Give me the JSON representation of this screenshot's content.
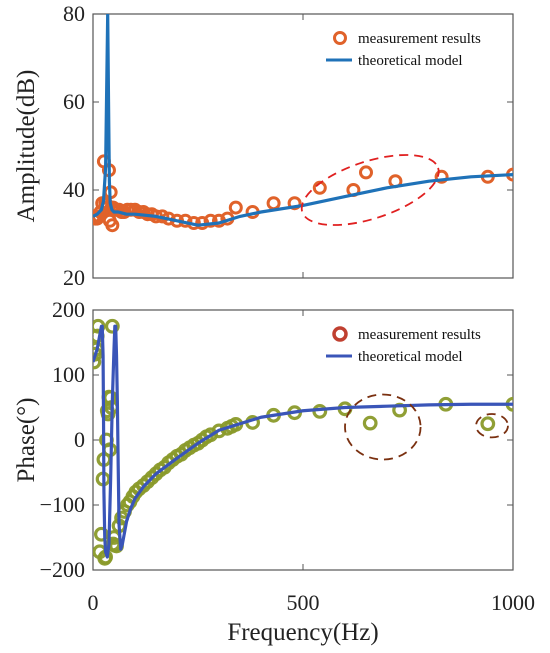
{
  "chart_data": [
    {
      "type": "scatter",
      "ylabel": "Amplitude(dB)",
      "xlim": [
        0,
        1000
      ],
      "ylim": [
        20,
        80
      ],
      "yticks": [
        20,
        40,
        60,
        80
      ],
      "ytick_labels": [
        "20",
        "40",
        "60",
        "80"
      ],
      "legend": {
        "placement": "top-right",
        "entries": [
          "measurement results",
          "theoretical model"
        ]
      },
      "colors": {
        "marker": "#e0622a",
        "line": "#1f72b8",
        "ellipse": "#e02020"
      },
      "series": [
        {
          "name": "measurement results",
          "x": [
            2,
            6,
            10,
            14,
            18,
            22,
            26,
            30,
            34,
            38,
            40,
            42,
            44,
            46,
            48,
            52,
            56,
            62,
            68,
            74,
            82,
            90,
            100,
            110,
            120,
            130,
            140,
            150,
            165,
            180,
            200,
            220,
            240,
            260,
            280,
            300,
            320,
            340,
            380,
            430,
            480,
            540,
            620,
            650,
            720,
            830,
            940,
            1000
          ],
          "y": [
            34,
            33.5,
            33.5,
            34,
            35,
            37,
            46.5,
            37,
            36,
            44.5,
            33,
            39.5,
            36,
            32,
            36,
            35.5,
            35.5,
            35.5,
            35,
            35,
            35.5,
            35.5,
            35.5,
            35,
            35,
            34.5,
            34.5,
            34,
            34,
            33.5,
            33,
            33,
            32.5,
            32.5,
            33,
            33,
            33.5,
            36,
            35,
            37,
            37,
            40.5,
            40,
            44,
            42,
            43,
            43,
            43.5
          ]
        },
        {
          "name": "theoretical model",
          "x": [
            0,
            10,
            20,
            25,
            30,
            33,
            35,
            37,
            39,
            41,
            45,
            50,
            60,
            80,
            100,
            150,
            200,
            250,
            300,
            350,
            400,
            500,
            600,
            700,
            800,
            900,
            1000
          ],
          "y": [
            34,
            34.5,
            35.5,
            37.5,
            45,
            66,
            80,
            60,
            42,
            37,
            35.5,
            35,
            35,
            34.5,
            34.5,
            34,
            33,
            32,
            32.5,
            34,
            35,
            36.5,
            38.5,
            40.5,
            42,
            43,
            43.5
          ]
        }
      ],
      "annotations": [
        {
          "shape": "dashed-ellipse",
          "x": 660,
          "y": 40,
          "rx": 170,
          "ry": 6.5,
          "angle": -18
        }
      ]
    },
    {
      "type": "scatter",
      "xlabel": "Frequency(Hz)",
      "ylabel": "Phase(°)",
      "xlim": [
        0,
        1000
      ],
      "ylim": [
        -200,
        200
      ],
      "xticks": [
        0,
        500,
        1000
      ],
      "xtick_labels": [
        "0",
        "500",
        "1000"
      ],
      "yticks": [
        -200,
        -100,
        0,
        100,
        200
      ],
      "ytick_labels": [
        "−200",
        "−100",
        "0",
        "100",
        "200"
      ],
      "legend": {
        "placement": "top-right",
        "entries": [
          "measurement results",
          "theoretical model"
        ]
      },
      "colors": {
        "marker": "#8a9a2a",
        "marker_edge": "#c04030",
        "line": "#3a55b8",
        "ellipse": "#7a3010"
      },
      "series": [
        {
          "name": "measurement results",
          "x": [
            2,
            5,
            8,
            10,
            12,
            16,
            20,
            24,
            26,
            28,
            30,
            32,
            34,
            36,
            38,
            40,
            42,
            44,
            46,
            48,
            50,
            52,
            56,
            62,
            68,
            75,
            82,
            88,
            95,
            102,
            110,
            120,
            130,
            140,
            150,
            160,
            170,
            180,
            190,
            200,
            210,
            220,
            230,
            240,
            250,
            260,
            270,
            280,
            300,
            320,
            330,
            340,
            380,
            430,
            480,
            540,
            600,
            660,
            730,
            840,
            940,
            1000
          ],
          "y": [
            120,
            132,
            140,
            160,
            175,
            -172,
            -145,
            -60,
            -30,
            -182,
            -180,
            0,
            45,
            40,
            66,
            -15,
            65,
            50,
            175,
            -160,
            -150,
            -162,
            -163,
            -132,
            -120,
            -110,
            -100,
            -95,
            -87,
            -80,
            -75,
            -70,
            -64,
            -58,
            -52,
            -46,
            -42,
            -35,
            -30,
            -25,
            -22,
            -16,
            -12,
            -8,
            -5,
            0,
            5,
            8,
            14,
            18,
            21,
            24,
            27,
            38,
            42,
            44,
            48,
            26,
            46,
            55,
            25,
            55
          ]
        },
        {
          "name": "theoretical model",
          "x": [
            0,
            10,
            18,
            20,
            22,
            24,
            25,
            26,
            28,
            30,
            34,
            38,
            42,
            46,
            50,
            52,
            54,
            56,
            58,
            60,
            62,
            66,
            70,
            80,
            90,
            100,
            120,
            150,
            200,
            250,
            300,
            400,
            500,
            600,
            700,
            800,
            900,
            1000
          ],
          "y": [
            120,
            140,
            168,
            175,
            175,
            130,
            40,
            -80,
            -150,
            -172,
            -180,
            -160,
            -60,
            60,
            140,
            175,
            175,
            130,
            60,
            -40,
            -130,
            -168,
            -160,
            -125,
            -105,
            -90,
            -72,
            -52,
            -28,
            -5,
            15,
            35,
            45,
            50,
            52,
            54,
            55,
            55
          ]
        }
      ],
      "annotations": [
        {
          "shape": "dashed-ellipse",
          "x": 690,
          "y": 20,
          "rx": 90,
          "ry": 50,
          "angle": 0
        },
        {
          "shape": "dashed-ellipse",
          "x": 950,
          "y": 22,
          "rx": 38,
          "ry": 18,
          "angle": 0
        }
      ]
    }
  ]
}
